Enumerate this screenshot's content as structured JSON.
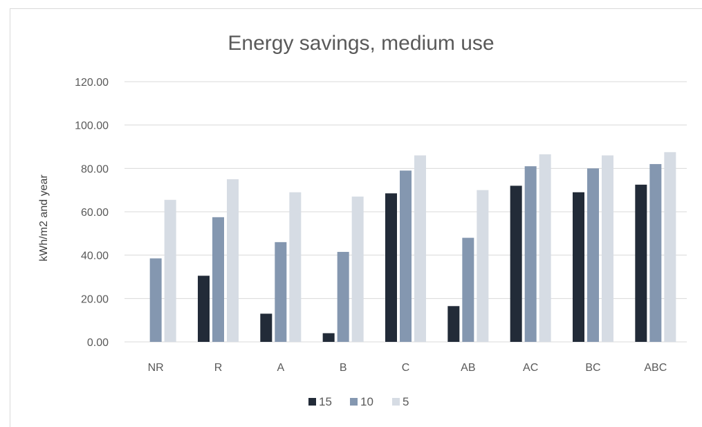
{
  "chart_data": {
    "type": "bar",
    "title": "Energy savings, medium use",
    "ylabel": "kWh/m2 and year",
    "xlabel": "",
    "categories": [
      "NR",
      "R",
      "A",
      "B",
      "C",
      "AB",
      "AC",
      "BC",
      "ABC"
    ],
    "series": [
      {
        "name": "15",
        "color": "#222b38",
        "values": [
          0,
          30.5,
          13,
          4,
          68.5,
          16.5,
          72,
          69,
          72.5
        ]
      },
      {
        "name": "10",
        "color": "#8497b0",
        "values": [
          38.5,
          57.5,
          46,
          41.5,
          79,
          48,
          81,
          80,
          82
        ]
      },
      {
        "name": "5",
        "color": "#d6dce4",
        "values": [
          65.5,
          75,
          69,
          67,
          86,
          70,
          86.5,
          86,
          87.5
        ]
      }
    ],
    "yticks": [
      "0.00",
      "20.00",
      "40.00",
      "60.00",
      "80.00",
      "100.00",
      "120.00"
    ],
    "ylim": [
      0,
      120
    ],
    "grid": true,
    "legend": "bottom"
  }
}
